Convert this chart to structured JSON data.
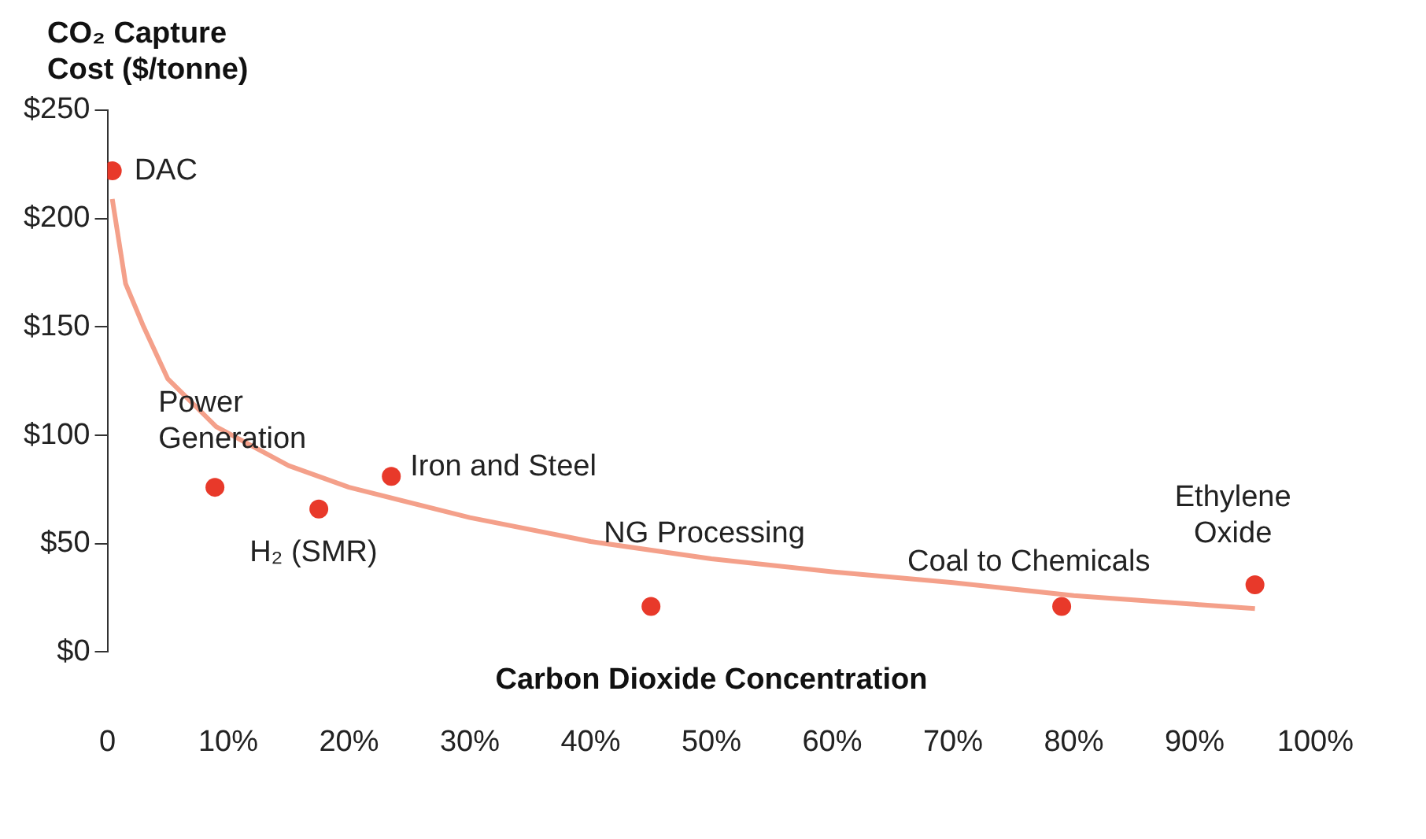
{
  "chart_data": {
    "type": "scatter",
    "ylabel": "CO₂ Capture Cost ($/tonne)",
    "xlabel": "Carbon Dioxide Concentration",
    "series": [
      {
        "type": "line",
        "color": "#f4a08a",
        "marker": "none",
        "x": [
          0.4,
          1.5,
          3,
          5,
          9,
          15,
          20,
          30,
          40,
          50,
          60,
          70,
          80,
          90,
          95
        ],
        "values": [
          209,
          170,
          150,
          126,
          104,
          86,
          76,
          62,
          51,
          43,
          37,
          32,
          26,
          22,
          20
        ]
      },
      {
        "color": "#e8392a",
        "marker": "circle",
        "x": [
          0.4,
          8.9,
          17.5,
          23.5,
          45,
          79,
          95
        ],
        "values": [
          222,
          76,
          66,
          81,
          21,
          21,
          31
        ]
      }
    ],
    "annotations": [
      {
        "text": "DAC",
        "x": 0.4,
        "y": 222
      },
      {
        "text": "Power Generation",
        "x": 8.9,
        "y": 76
      },
      {
        "text": "H₂ (SMR)",
        "x": 17.5,
        "y": 66
      },
      {
        "text": "Iron and Steel",
        "x": 23.5,
        "y": 81
      },
      {
        "text": "NG Processing",
        "x": 45,
        "y": 21
      },
      {
        "text": "Coal to Chemicals",
        "x": 79,
        "y": 21
      },
      {
        "text": "Ethylene Oxide",
        "x": 95,
        "y": 31
      }
    ],
    "xlim": [
      0,
      100
    ],
    "xticks": [
      0,
      {
        "value": 10,
        "label": "10%"
      },
      {
        "value": 20,
        "label": "20%"
      },
      {
        "value": 30,
        "label": "30%"
      },
      {
        "value": 40,
        "label": "40%"
      },
      {
        "value": 50,
        "label": "50%"
      },
      {
        "value": 60,
        "label": "60%"
      },
      {
        "value": 70,
        "label": "70%"
      },
      {
        "value": 80,
        "label": "80%"
      },
      {
        "value": 90,
        "label": "90%"
      },
      {
        "value": 100,
        "label": "100%"
      }
    ],
    "ylim": [
      0,
      250
    ],
    "yticks": [
      {
        "value": 0,
        "label": "$0"
      },
      {
        "value": 50,
        "label": "$50"
      },
      {
        "value": 100,
        "label": "$100"
      },
      {
        "value": 150,
        "label": "$150"
      },
      {
        "value": 200,
        "label": "$200"
      },
      {
        "value": 250,
        "label": "$250"
      }
    ],
    "grid": false,
    "legend": false
  }
}
